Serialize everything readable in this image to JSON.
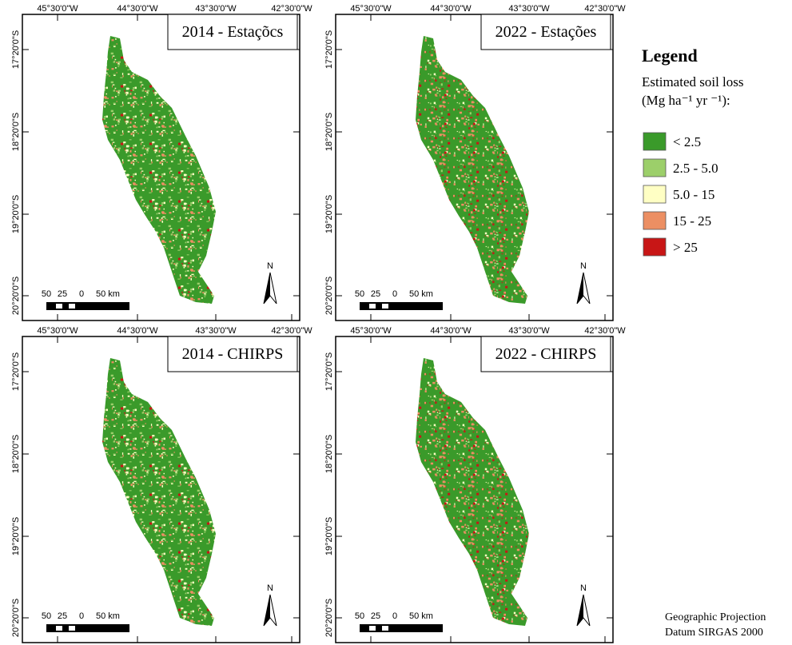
{
  "panels": [
    {
      "title": "2014 - Estaçõcs",
      "style": "low"
    },
    {
      "title": "2022 - Estações",
      "style": "high"
    },
    {
      "title": "2014 - CHIRPS",
      "style": "low"
    },
    {
      "title": "2022 - CHIRPS",
      "style": "high"
    }
  ],
  "graticule": {
    "lon": [
      "45°30'0\"W",
      "44°30'0\"W",
      "43°30'0\"W",
      "42°30'0\"W"
    ],
    "lat": [
      "17°20'0\"S",
      "18°20'0\"S",
      "19°20'0\"S",
      "20°20'0\"S"
    ]
  },
  "scale_bar": [
    "50",
    "25",
    "0",
    "50 km"
  ],
  "north": "N",
  "legend": {
    "title": "Legend",
    "subtitle": [
      "Estimated soil loss",
      "(Mg ha⁻¹ yr ⁻¹):"
    ],
    "items": [
      {
        "label": "< 2.5",
        "color": "#3a9a2a"
      },
      {
        "label": "2.5 - 5.0",
        "color": "#9ccf6a"
      },
      {
        "label": "5.0 - 15",
        "color": "#ffffc4"
      },
      {
        "label": "15 - 25",
        "color": "#ec8f63"
      },
      {
        "label": "> 25",
        "color": "#c81616"
      }
    ]
  },
  "footer": [
    "Geographic Projection",
    "Datum SIRGAS 2000"
  ]
}
